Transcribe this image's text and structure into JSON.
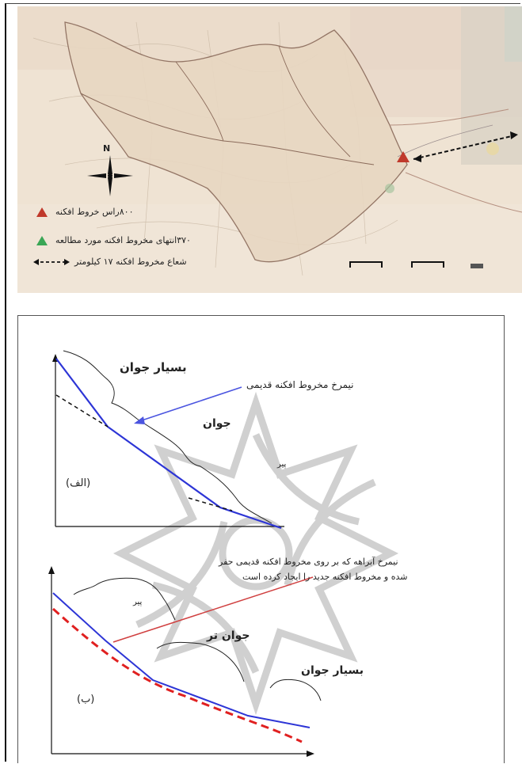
{
  "map": {
    "north_label": "N",
    "legend": [
      {
        "icon": "red-triangle-icon",
        "color": "#c0392b",
        "text": "۸۰۰راس خروط افکنه"
      },
      {
        "icon": "green-triangle-icon",
        "color": "#3aa655",
        "text": "۳۷۰انتهای مخروط افکنه مورد مطالعه"
      },
      {
        "icon": "dashed-arrow-icon",
        "color": "#111111",
        "text": "شعاع مخروط افکنه ۱۷ کیلومتر"
      }
    ]
  },
  "diagram_top": {
    "label_very_young": "بسیار جوان",
    "label_old_profile": "نیمرخ مخروط افکنه قدیمی",
    "label_young": "جوان",
    "label_old": "پیر",
    "label_panel": "(الف)"
  },
  "diagram_bottom": {
    "note_line1": "نیمرخ آبراهه که بر روی مخروط افکنه قدیمی حفر",
    "note_line2": "شده و مخروط افکنه جدید را ایجاد کرده است",
    "label_old": "پیر",
    "label_younger": "جوان تر",
    "label_very_young": "بسیار جوان",
    "label_panel": "(ب)"
  },
  "colors": {
    "profile_blue": "#2d35d6",
    "arrow_blue": "#4b55e0",
    "dashed_red": "#e02020",
    "pointer_red": "#d04040",
    "watermark_gray": "#c8c8c8"
  }
}
